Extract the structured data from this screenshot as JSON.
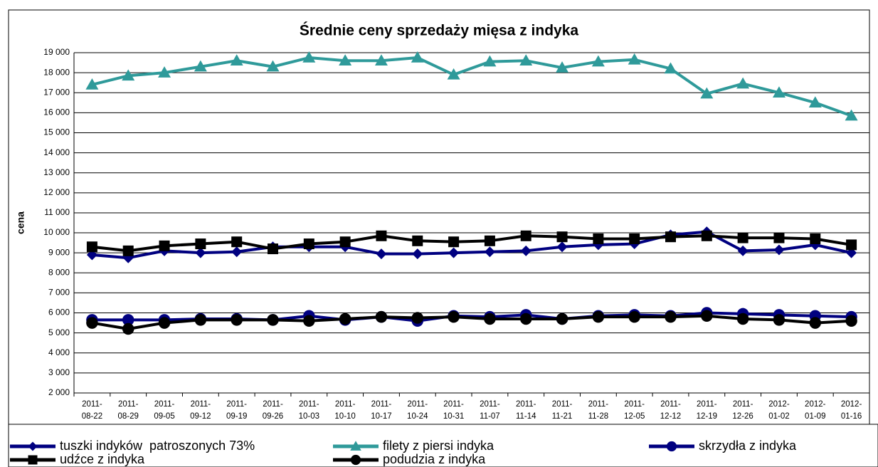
{
  "chart_data": {
    "type": "line",
    "title": "Średnie ceny sprzedaży mięsa z indyka",
    "y_label": "cena",
    "categories": [
      "2011-08-22",
      "2011-08-29",
      "2011-09-05",
      "2011-09-12",
      "2011-09-19",
      "2011-09-26",
      "2011-10-03",
      "2011-10-10",
      "2011-10-17",
      "2011-10-24",
      "2011-10-31",
      "2011-11-07",
      "2011-11-14",
      "2011-11-21",
      "2011-11-28",
      "2011-12-05",
      "2011-12-12",
      "2011-12-19",
      "2011-12-26",
      "2012-01-02",
      "2012-01-09",
      "2012-01-16"
    ],
    "series": [
      {
        "name": "tuszki indyków  patroszonych 73%",
        "color": "#000080",
        "marker": "diamond",
        "values": [
          8900,
          8750,
          9100,
          9000,
          9050,
          9300,
          9300,
          9300,
          8950,
          8950,
          9000,
          9050,
          9100,
          9300,
          9400,
          9450,
          9900,
          10050,
          9100,
          9150,
          9400,
          9000
        ]
      },
      {
        "name": "filety z piersi indyka",
        "color": "#2f9a9a",
        "marker": "triangle",
        "values": [
          17400,
          17850,
          18000,
          18300,
          18600,
          18300,
          18750,
          18600,
          18600,
          18750,
          17900,
          18550,
          18600,
          18250,
          18550,
          18650,
          18200,
          16950,
          17450,
          17000,
          16500,
          15850
        ]
      },
      {
        "name": "skrzydła z indyka",
        "color": "#000080",
        "marker": "circle",
        "values": [
          5650,
          5650,
          5650,
          5700,
          5700,
          5650,
          5850,
          5650,
          5800,
          5600,
          5850,
          5800,
          5900,
          5700,
          5850,
          5900,
          5850,
          6000,
          5950,
          5900,
          5850,
          5800
        ]
      },
      {
        "name": "udźce z indyka",
        "color": "#000000",
        "marker": "square",
        "values": [
          9300,
          9100,
          9350,
          9450,
          9550,
          9200,
          9450,
          9550,
          9850,
          9600,
          9550,
          9600,
          9850,
          9800,
          9700,
          9700,
          9800,
          9850,
          9750,
          9750,
          9700,
          9400
        ]
      },
      {
        "name": "podudzia z indyka",
        "color": "#000000",
        "marker": "circle",
        "values": [
          5500,
          5200,
          5500,
          5650,
          5650,
          5650,
          5600,
          5700,
          5800,
          5750,
          5800,
          5700,
          5700,
          5700,
          5800,
          5800,
          5800,
          5850,
          5700,
          5650,
          5500,
          5600
        ]
      }
    ],
    "ylim": [
      2000,
      19000
    ],
    "yticks": [
      {
        "value": 2000,
        "label": "2 000"
      },
      {
        "value": 3000,
        "label": "3 000"
      },
      {
        "value": 4000,
        "label": "4 000"
      },
      {
        "value": 5000,
        "label": "5 000"
      },
      {
        "value": 6000,
        "label": "6 000"
      },
      {
        "value": 7000,
        "label": "7 000"
      },
      {
        "value": 8000,
        "label": "8 000"
      },
      {
        "value": 9000,
        "label": "9 000"
      },
      {
        "value": 10000,
        "label": "10 000"
      },
      {
        "value": 11000,
        "label": "11 000"
      },
      {
        "value": 12000,
        "label": "12 000"
      },
      {
        "value": 13000,
        "label": "13 000"
      },
      {
        "value": 14000,
        "label": "14 000"
      },
      {
        "value": 15000,
        "label": "15 000"
      },
      {
        "value": 16000,
        "label": "16 000"
      },
      {
        "value": 17000,
        "label": "17 000"
      },
      {
        "value": 18000,
        "label": "18 000"
      },
      {
        "value": 19000,
        "label": "19 000"
      }
    ],
    "grid": true,
    "legend": "bottom"
  }
}
